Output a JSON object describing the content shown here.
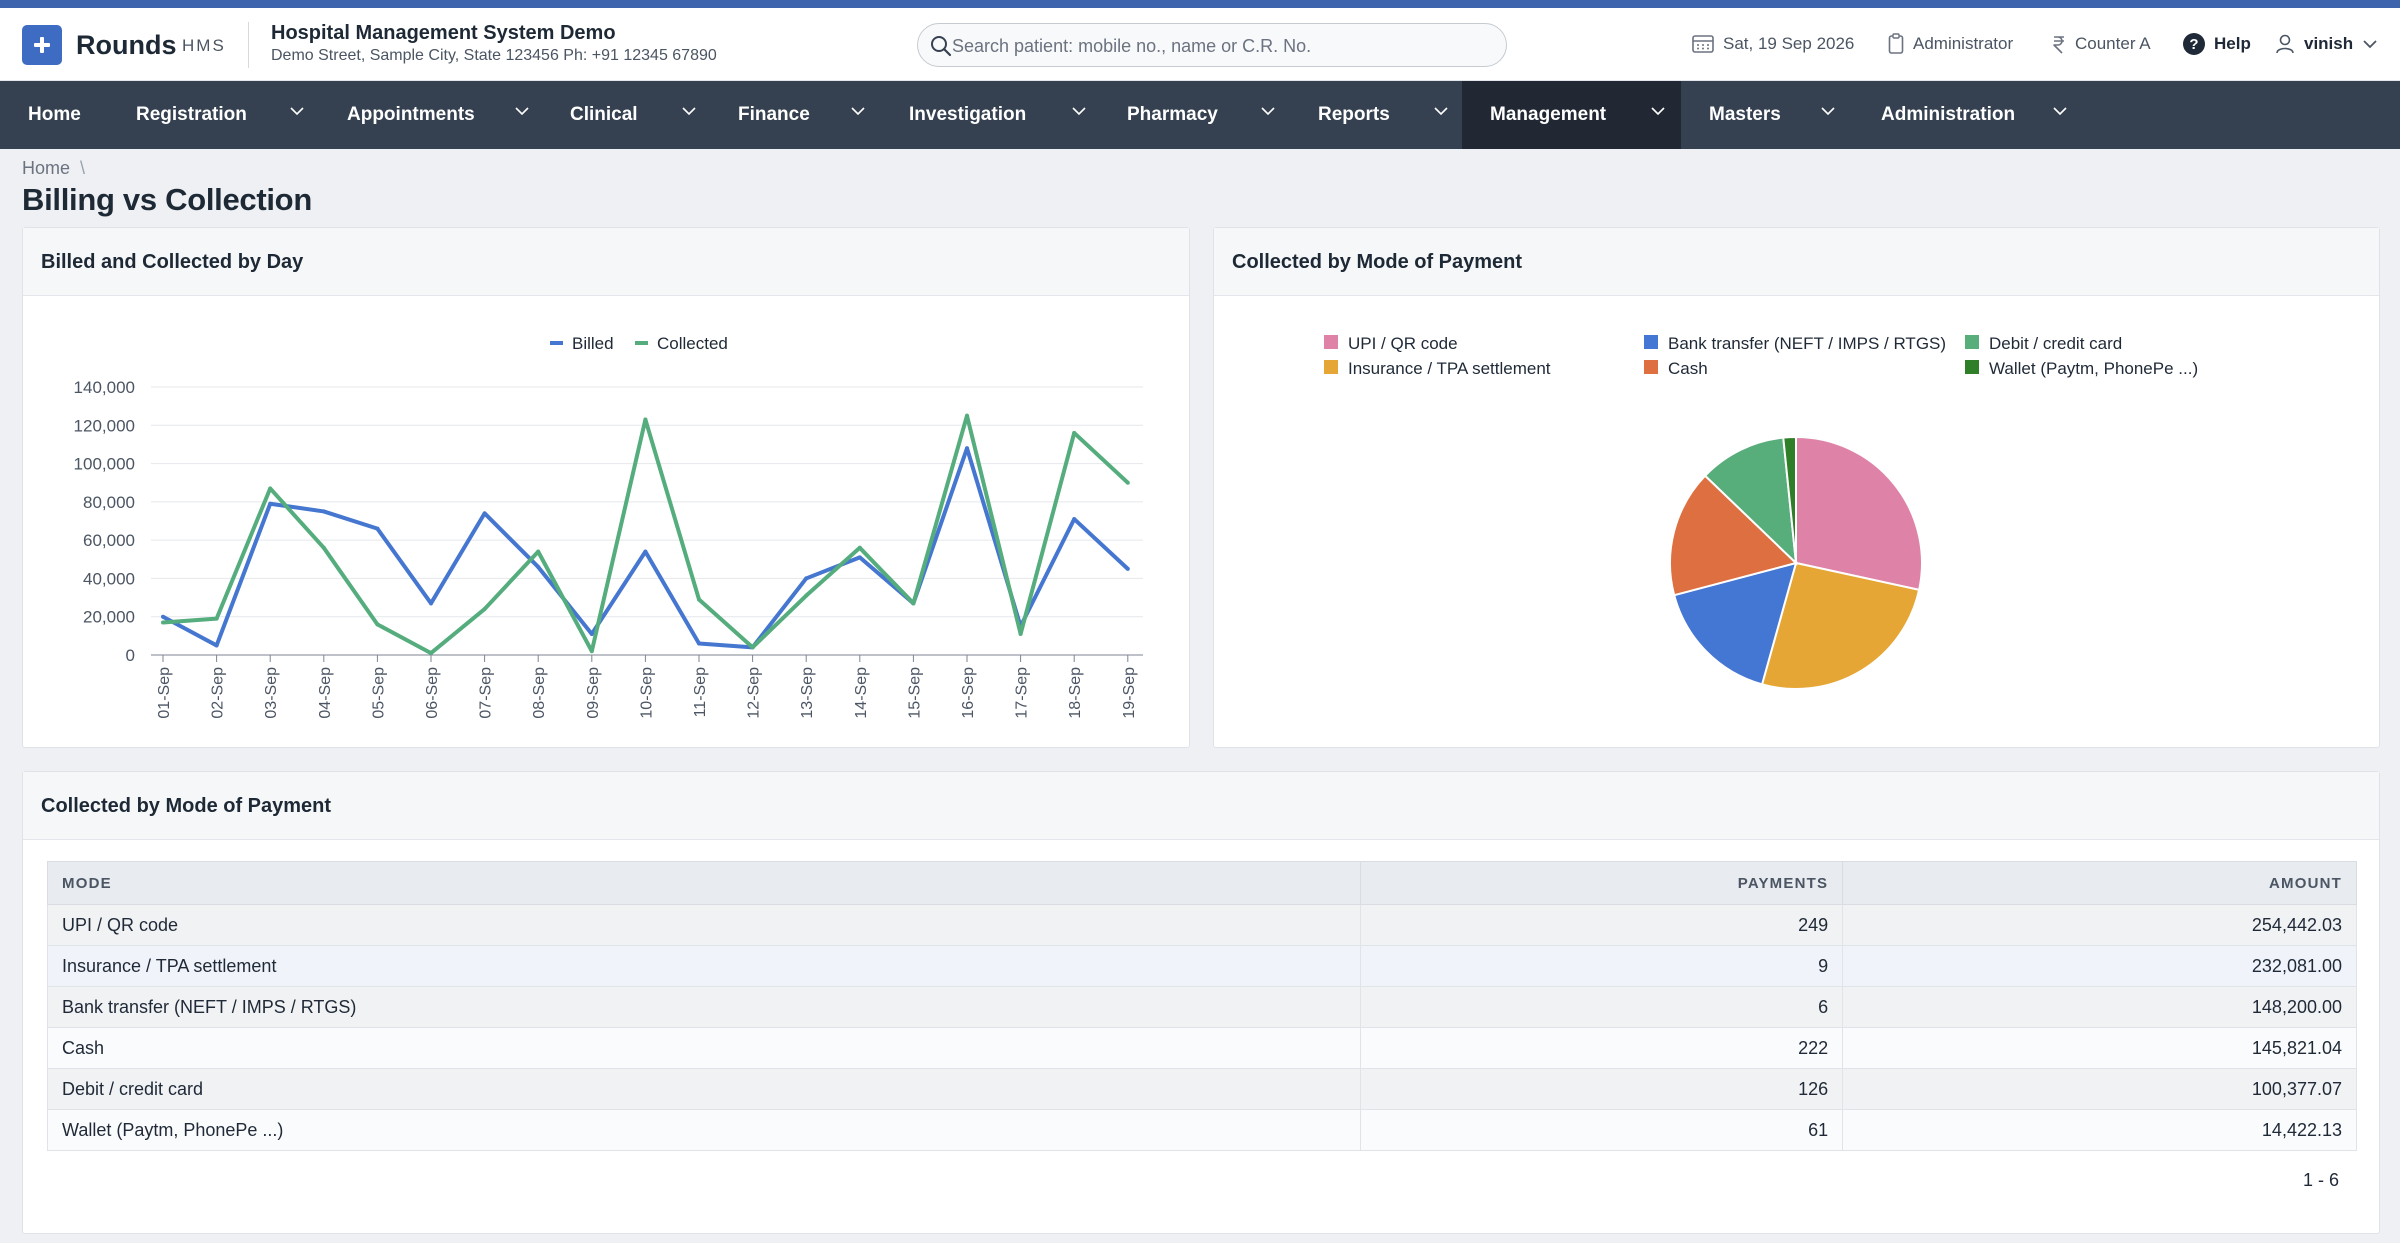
{
  "header": {
    "brand": "Rounds",
    "brand_sub": "HMS",
    "hospital_name": "Hospital Management System Demo",
    "hospital_address": "Demo Street, Sample City, State 123456 Ph: +91 12345 67890",
    "search_placeholder": "Search patient: mobile no., name or C.R. No.",
    "date": "Sat, 19 Sep 2026",
    "role": "Administrator",
    "counter": "Counter A",
    "help": "Help",
    "user": "vinish",
    "icons": [
      "plus-logo-icon",
      "search-icon",
      "calendar-icon",
      "clipboard-icon",
      "rupee-icon",
      "help-icon",
      "user-icon",
      "chevron-down-icon"
    ]
  },
  "nav": {
    "items": [
      {
        "label": "Home",
        "dropdown": false,
        "active": false
      },
      {
        "label": "Registration",
        "dropdown": true,
        "active": false
      },
      {
        "label": "Appointments",
        "dropdown": true,
        "active": false
      },
      {
        "label": "Clinical",
        "dropdown": true,
        "active": false
      },
      {
        "label": "Finance",
        "dropdown": true,
        "active": false
      },
      {
        "label": "Investigation",
        "dropdown": true,
        "active": false
      },
      {
        "label": "Pharmacy",
        "dropdown": true,
        "active": false
      },
      {
        "label": "Reports",
        "dropdown": true,
        "active": false
      },
      {
        "label": "Management",
        "dropdown": true,
        "active": true
      },
      {
        "label": "Masters",
        "dropdown": true,
        "active": false
      },
      {
        "label": "Administration",
        "dropdown": true,
        "active": false
      }
    ]
  },
  "breadcrumb": {
    "home": "Home",
    "separator": "\\"
  },
  "page_title": "Billing vs Collection",
  "line_card": {
    "title": "Billed and Collected by Day"
  },
  "pie_card": {
    "title": "Collected by Mode of Payment"
  },
  "table_card": {
    "title": "Collected by Mode of Payment",
    "columns": [
      "MODE",
      "PAYMENTS",
      "AMOUNT"
    ],
    "rows": [
      {
        "mode": "UPI / QR code",
        "payments": "249",
        "amount": "254,442.03"
      },
      {
        "mode": "Insurance / TPA settlement",
        "payments": "9",
        "amount": "232,081.00"
      },
      {
        "mode": "Bank transfer (NEFT / IMPS / RTGS)",
        "payments": "6",
        "amount": "148,200.00"
      },
      {
        "mode": "Cash",
        "payments": "222",
        "amount": "145,821.04"
      },
      {
        "mode": "Debit / credit card",
        "payments": "126",
        "amount": "100,377.07"
      },
      {
        "mode": "Wallet (Paytm, PhonePe ...)",
        "payments": "61",
        "amount": "14,422.13"
      }
    ],
    "pager": "1 - 6"
  },
  "chart_data": [
    {
      "type": "line",
      "title": "Billed and Collected by Day",
      "x": [
        "01-Sep",
        "02-Sep",
        "03-Sep",
        "04-Sep",
        "05-Sep",
        "06-Sep",
        "07-Sep",
        "08-Sep",
        "09-Sep",
        "10-Sep",
        "11-Sep",
        "12-Sep",
        "13-Sep",
        "14-Sep",
        "15-Sep",
        "16-Sep",
        "17-Sep",
        "18-Sep",
        "19-Sep"
      ],
      "series": [
        {
          "name": "Billed",
          "color": "#4576d0",
          "values": [
            20000,
            5000,
            79000,
            75000,
            66000,
            27000,
            74000,
            46000,
            11000,
            54000,
            6000,
            4000,
            40000,
            51000,
            27000,
            108000,
            15000,
            71000,
            45000
          ]
        },
        {
          "name": "Collected",
          "color": "#55ad7e",
          "values": [
            17000,
            19000,
            87000,
            56000,
            16000,
            1000,
            24000,
            54000,
            2000,
            123000,
            29000,
            4000,
            31000,
            56000,
            27000,
            125000,
            11000,
            116000,
            90000
          ]
        }
      ],
      "ylim": [
        0,
        140000
      ],
      "yticks": [
        "0",
        "20,000",
        "40,000",
        "60,000",
        "80,000",
        "100,000",
        "120,000",
        "140,000"
      ],
      "grid": true,
      "legend": "top"
    },
    {
      "type": "pie",
      "title": "Collected by Mode of Payment",
      "labels": [
        "UPI / QR code",
        "Insurance / TPA settlement",
        "Bank transfer (NEFT / IMPS / RTGS)",
        "Cash",
        "Debit / credit card",
        "Wallet (Paytm, PhonePe ...)"
      ],
      "values": [
        254442.03,
        232081.0,
        148200.0,
        145821.04,
        100377.07,
        14422.13
      ],
      "colors": [
        "#de82a8",
        "#e5a636",
        "#4476d3",
        "#de6f41",
        "#58ae7b",
        "#2e7f27"
      ],
      "legend_order": [
        "UPI / QR code",
        "Bank transfer (NEFT / IMPS / RTGS)",
        "Debit / credit card",
        "Insurance / TPA settlement",
        "Cash",
        "Wallet (Paytm, PhonePe ...)"
      ],
      "legend": "top"
    }
  ]
}
